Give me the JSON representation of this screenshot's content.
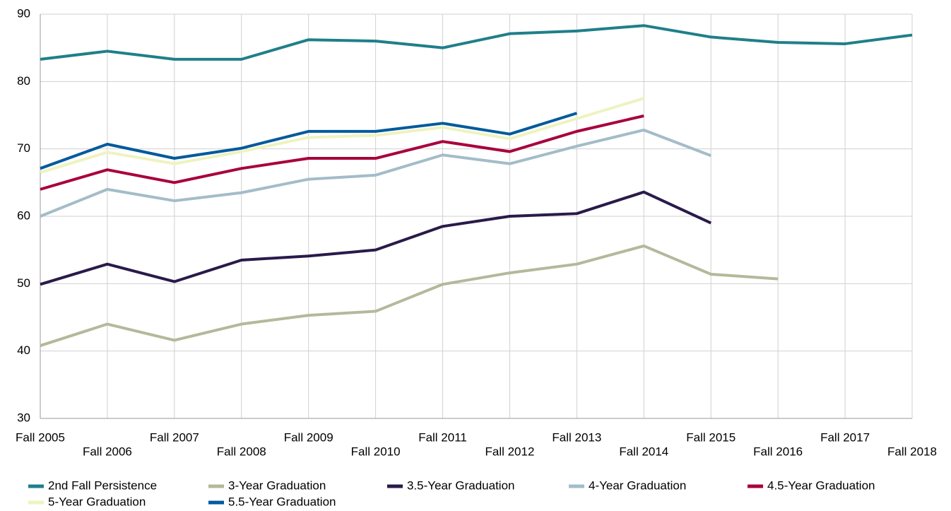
{
  "chart_data": {
    "type": "line",
    "categories": [
      "Fall 2005",
      "Fall 2006",
      "Fall 2007",
      "Fall 2008",
      "Fall 2009",
      "Fall 2010",
      "Fall 2011",
      "Fall 2012",
      "Fall 2013",
      "Fall 2014",
      "Fall 2015",
      "Fall 2016",
      "Fall 2017",
      "Fall 2018"
    ],
    "series": [
      {
        "name": "2nd Fall Persistence",
        "color": "#1f7f8a",
        "values": [
          83.3,
          84.5,
          83.3,
          83.3,
          86.2,
          86.0,
          85.0,
          87.1,
          87.5,
          88.3,
          86.6,
          85.8,
          85.6,
          86.9
        ]
      },
      {
        "name": "3-Year Graduation",
        "color": "#b5b89a",
        "values": [
          40.8,
          44.0,
          41.6,
          44.0,
          45.3,
          45.9,
          49.9,
          51.6,
          52.9,
          55.6,
          51.4,
          50.7,
          null,
          null
        ]
      },
      {
        "name": "3.5-Year Graduation",
        "color": "#2a1a4a",
        "values": [
          49.9,
          52.9,
          50.3,
          53.5,
          54.1,
          55.0,
          58.5,
          60.0,
          60.4,
          63.6,
          59.0,
          null,
          null,
          null
        ]
      },
      {
        "name": "4-Year Graduation",
        "color": "#a3bcc8",
        "values": [
          60.0,
          64.0,
          62.3,
          63.5,
          65.5,
          66.1,
          69.1,
          67.8,
          70.4,
          72.8,
          69.0,
          null,
          null,
          null
        ]
      },
      {
        "name": "4.5-Year Graduation",
        "color": "#a8003c",
        "values": [
          64.0,
          66.9,
          65.0,
          67.1,
          68.6,
          68.6,
          71.1,
          69.6,
          72.6,
          74.9,
          null,
          null,
          null,
          null
        ]
      },
      {
        "name": "5-Year Graduation",
        "color": "#eef3c0",
        "values": [
          66.5,
          69.5,
          67.8,
          69.6,
          71.7,
          72.0,
          73.2,
          71.5,
          74.5,
          77.5,
          null,
          null,
          null,
          null
        ]
      },
      {
        "name": "5.5-Year Graduation",
        "color": "#005a9c",
        "values": [
          67.1,
          70.7,
          68.6,
          70.1,
          72.6,
          72.6,
          73.8,
          72.2,
          75.3,
          null,
          null,
          null,
          null,
          null
        ]
      }
    ],
    "ylim": [
      30,
      90
    ],
    "yticks": [
      30,
      40,
      50,
      60,
      70,
      80,
      90
    ],
    "grid": true,
    "legend": "bottom"
  }
}
